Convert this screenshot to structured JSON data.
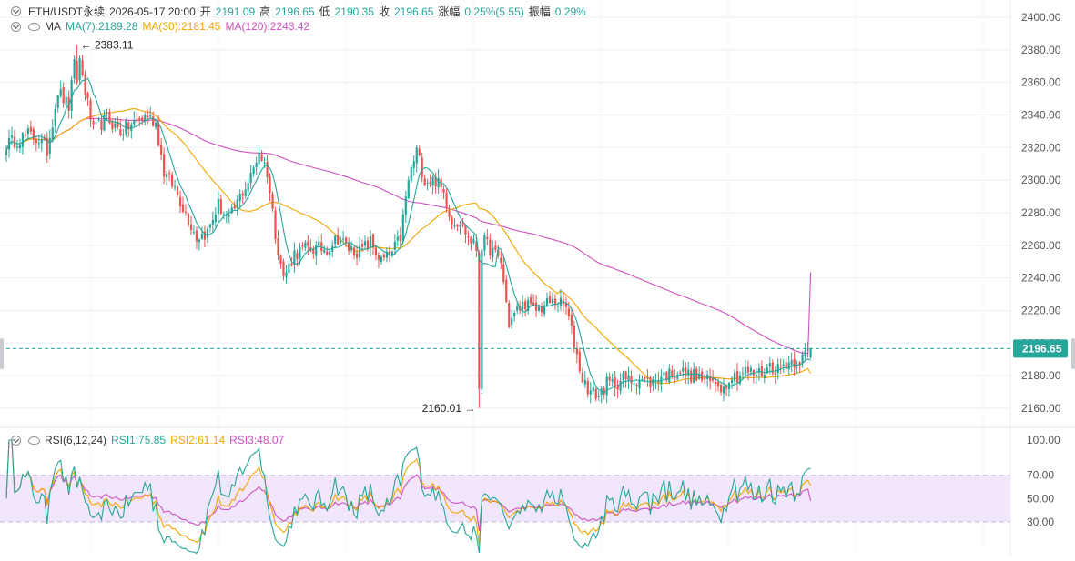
{
  "symbol": "ETH/USDT永续",
  "timestamp": "2026-05-17 20:00",
  "ohlc": {
    "open_label": "开",
    "open": "2191.09",
    "high_label": "高",
    "high": "2196.65",
    "low_label": "低",
    "low": "2190.35",
    "close_label": "收",
    "close": "2196.65",
    "change_label": "涨幅",
    "change": "0.25%(5.55)",
    "amplitude_label": "振幅",
    "amplitude": "0.29%"
  },
  "ma_legend": {
    "title": "MA",
    "ma7": "MA(7):2189.28",
    "ma30": "MA(30):2181.45",
    "ma120": "MA(120):2243.42"
  },
  "rsi_legend": {
    "title": "RSI(6,12,24)",
    "rsi1": "RSI1:75.85",
    "rsi2": "RSI2:61.14",
    "rsi3": "RSI3:48.07"
  },
  "colors": {
    "up": "#26a69a",
    "down": "#ef5350",
    "ma7": "#26a69a",
    "ma30": "#f0a500",
    "ma120": "#d050c0",
    "rsi1": "#26a69a",
    "rsi2": "#f0a500",
    "rsi3": "#d050c0",
    "price_line": "#26a69a",
    "rsi_band": "#f1e6fb",
    "grid": "#eceef1",
    "axis_text": "#555555"
  },
  "chart_data": [
    {
      "type": "candlestick",
      "title": "ETH/USDT永续",
      "ylim": [
        2150,
        2405
      ],
      "yticks": [
        "2400.00",
        "2380.00",
        "2360.00",
        "2340.00",
        "2320.00",
        "2300.00",
        "2280.00",
        "2260.00",
        "2240.00",
        "2220.00",
        "2200.00",
        "2180.00",
        "2160.00"
      ],
      "current_price": "2196.65",
      "high_marker": {
        "index": 26,
        "value": 2383.11,
        "label": "2383.11"
      },
      "low_marker": {
        "index": 174,
        "value": 2160.01,
        "label": "2160.01"
      },
      "anchors": [
        [
          0,
          2322
        ],
        [
          8,
          2328
        ],
        [
          12,
          2325
        ],
        [
          15,
          2318
        ],
        [
          19,
          2355
        ],
        [
          23,
          2345
        ],
        [
          26,
          2383
        ],
        [
          29,
          2355
        ],
        [
          32,
          2330
        ],
        [
          37,
          2338
        ],
        [
          42,
          2330
        ],
        [
          47,
          2335
        ],
        [
          52,
          2340
        ],
        [
          55,
          2335
        ],
        [
          58,
          2305
        ],
        [
          62,
          2295
        ],
        [
          66,
          2280
        ],
        [
          70,
          2265
        ],
        [
          74,
          2268
        ],
        [
          78,
          2285
        ],
        [
          82,
          2275
        ],
        [
          86,
          2290
        ],
        [
          90,
          2302
        ],
        [
          93,
          2318
        ],
        [
          96,
          2305
        ],
        [
          99,
          2268
        ],
        [
          102,
          2240
        ],
        [
          106,
          2255
        ],
        [
          110,
          2258
        ],
        [
          114,
          2258
        ],
        [
          118,
          2258
        ],
        [
          122,
          2265
        ],
        [
          126,
          2258
        ],
        [
          130,
          2256
        ],
        [
          134,
          2262
        ],
        [
          138,
          2250
        ],
        [
          142,
          2255
        ],
        [
          145,
          2265
        ],
        [
          148,
          2300
        ],
        [
          151,
          2318
        ],
        [
          154,
          2300
        ],
        [
          158,
          2300
        ],
        [
          161,
          2292
        ],
        [
          164,
          2275
        ],
        [
          167,
          2275
        ],
        [
          170,
          2265
        ],
        [
          173,
          2258
        ],
        [
          176,
          2262
        ],
        [
          178,
          2258
        ],
        [
          182,
          2250
        ],
        [
          185,
          2212
        ],
        [
          188,
          2220
        ],
        [
          191,
          2225
        ],
        [
          194,
          2220
        ],
        [
          197,
          2222
        ],
        [
          200,
          2225
        ],
        [
          203,
          2225
        ],
        [
          206,
          2222
        ],
        [
          209,
          2200
        ],
        [
          212,
          2178
        ],
        [
          215,
          2170
        ],
        [
          218,
          2168
        ],
        [
          221,
          2175
        ],
        [
          224,
          2175
        ],
        [
          227,
          2178
        ],
        [
          230,
          2177
        ],
        [
          233,
          2178
        ],
        [
          236,
          2176
        ],
        [
          238,
          2176
        ],
        [
          241,
          2180
        ],
        [
          244,
          2181
        ],
        [
          247,
          2183
        ],
        [
          250,
          2181
        ],
        [
          253,
          2180
        ],
        [
          256,
          2178
        ],
        [
          259,
          2176
        ],
        [
          262,
          2176
        ],
        [
          264,
          2172
        ],
        [
          266,
          2180
        ],
        [
          269,
          2180
        ],
        [
          272,
          2183
        ],
        [
          275,
          2181
        ],
        [
          278,
          2182
        ],
        [
          281,
          2186
        ],
        [
          284,
          2184
        ],
        [
          287,
          2188
        ],
        [
          290,
          2189
        ],
        [
          293,
          2191
        ],
        [
          296,
          2196.65
        ]
      ],
      "ma7_last": 2189.28,
      "ma30_last": 2181.45,
      "ma120_last": 2243.42
    },
    {
      "type": "line",
      "title": "RSI(6,12,24)",
      "ylim": [
        20,
        100
      ],
      "yticks": [
        "100.00",
        "70.00",
        "50.00",
        "30.00"
      ],
      "band": [
        30,
        70
      ],
      "series_last": {
        "RSI1": 75.85,
        "RSI2": 61.14,
        "RSI3": 48.07
      }
    }
  ]
}
